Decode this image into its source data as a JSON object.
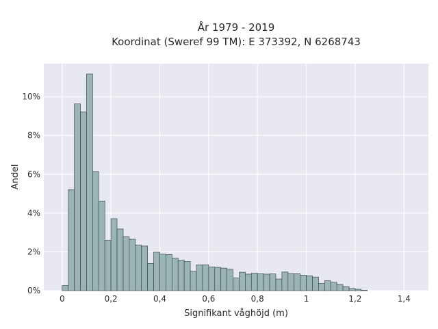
{
  "chart_data": {
    "type": "bar",
    "title_lines": [
      "År 1979 - 2019",
      "Koordinat (Sweref 99 TM): E 373392, N 6268743"
    ],
    "xlabel": "Signifikant våghöjd (m)",
    "ylabel": "Andel",
    "bin_width": 0.025,
    "bin_start": 0.0,
    "values": [
      0.26,
      5.2,
      9.63,
      9.22,
      11.17,
      6.13,
      4.62,
      2.6,
      3.71,
      3.18,
      2.78,
      2.65,
      2.35,
      2.3,
      1.4,
      1.98,
      1.88,
      1.86,
      1.68,
      1.57,
      1.5,
      1.0,
      1.33,
      1.33,
      1.22,
      1.2,
      1.16,
      1.1,
      0.65,
      0.95,
      0.85,
      0.9,
      0.87,
      0.85,
      0.86,
      0.6,
      0.96,
      0.88,
      0.87,
      0.8,
      0.76,
      0.7,
      0.37,
      0.51,
      0.44,
      0.32,
      0.21,
      0.11,
      0.07,
      0.02
    ],
    "xlim": [
      -0.075,
      1.5
    ],
    "ylim": [
      0,
      11.7
    ],
    "xticks": [
      0,
      0.2,
      0.4,
      0.6,
      0.8,
      1,
      1.2,
      1.4
    ],
    "xtick_labels": [
      "0",
      "0,2",
      "0,4",
      "0,6",
      "0,8",
      "1",
      "1,2",
      "1,4"
    ],
    "yticks": [
      0,
      2,
      4,
      6,
      8,
      10
    ],
    "ytick_labels": [
      "0%",
      "2%",
      "4%",
      "6%",
      "8%",
      "10%"
    ],
    "grid": true,
    "colors": {
      "bar_fill": "#9bb5b4",
      "bar_edge": "#3b4a4a",
      "plot_bg": "#e8e8f1",
      "grid": "#ffffff"
    }
  }
}
